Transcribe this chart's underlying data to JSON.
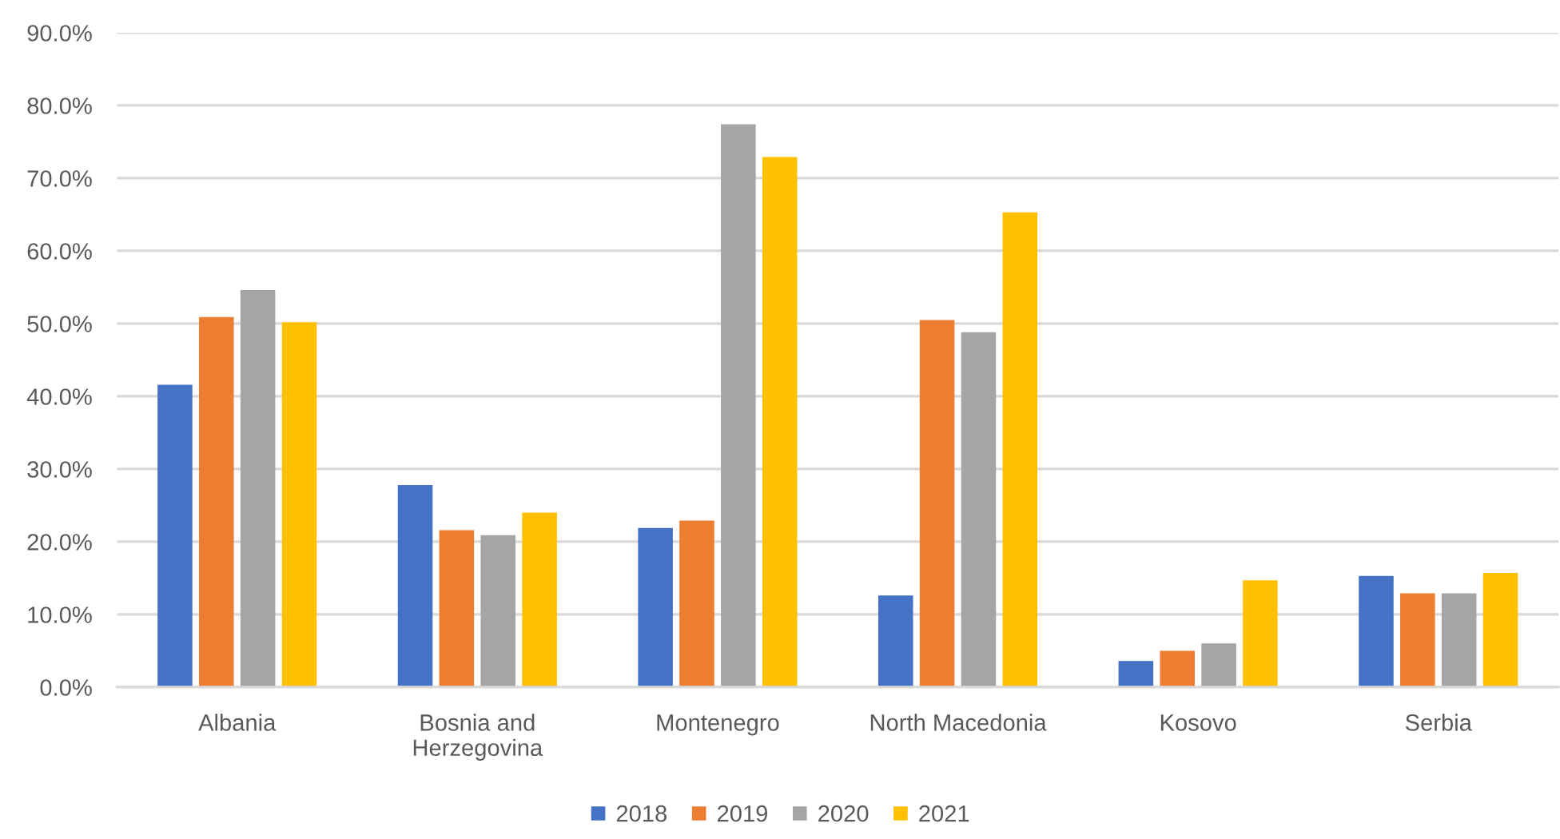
{
  "chart_data": {
    "type": "bar",
    "categories": [
      "Albania",
      "Bosnia and\nHerzegovina",
      "Montenegro",
      "North Macedonia",
      "Kosovo",
      "Serbia"
    ],
    "series": [
      {
        "name": "2018",
        "color": "#4472c4",
        "values": [
          41.6,
          27.8,
          21.9,
          12.6,
          3.6,
          15.3
        ]
      },
      {
        "name": "2019",
        "color": "#ed7d31",
        "values": [
          50.9,
          21.6,
          22.9,
          50.5,
          5.0,
          12.9
        ]
      },
      {
        "name": "2020",
        "color": "#a5a5a5",
        "values": [
          54.6,
          20.9,
          77.4,
          48.8,
          6.0,
          12.9
        ]
      },
      {
        "name": "2021",
        "color": "#ffc000",
        "values": [
          50.2,
          24.0,
          72.9,
          65.3,
          14.7,
          15.7
        ]
      }
    ],
    "ylim": [
      0,
      90
    ],
    "yticks": [
      {
        "value": 0,
        "label": "0.0%"
      },
      {
        "value": 10,
        "label": "10.0%"
      },
      {
        "value": 20,
        "label": "20.0%"
      },
      {
        "value": 30,
        "label": "30.0%"
      },
      {
        "value": 40,
        "label": "40.0%"
      },
      {
        "value": 50,
        "label": "50.0%"
      },
      {
        "value": 60,
        "label": "60.0%"
      },
      {
        "value": 70,
        "label": "70.0%"
      },
      {
        "value": 80,
        "label": "80.0%"
      },
      {
        "value": 90,
        "label": "90.0%"
      }
    ],
    "grid": "y",
    "legend": "bottom"
  }
}
